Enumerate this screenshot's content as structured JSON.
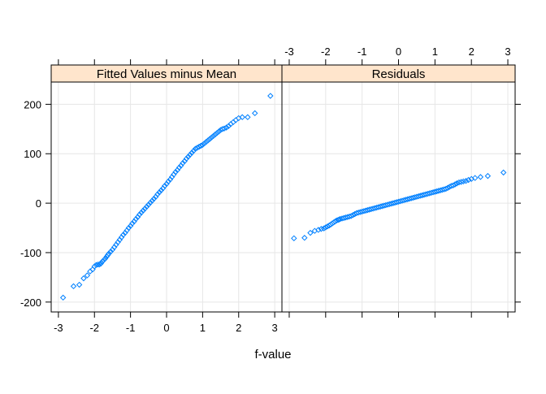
{
  "colors": {
    "point": "#0080ff",
    "strip_bg": "#ffe5cc",
    "grid": "#e6e6e6",
    "frame": "#000000"
  },
  "chart_data": {
    "type": "scatter",
    "plot_kind": "residual-fit spread plot (two-panel quantile plot)",
    "xlabel": "f-value",
    "ylabel": "",
    "xlim": [
      -3.2,
      3.2
    ],
    "ylim": [
      -220,
      245
    ],
    "x_ticks": [
      -3,
      -2,
      -1,
      0,
      1,
      2,
      3
    ],
    "y_ticks": [
      -200,
      -100,
      0,
      100,
      200
    ],
    "grid": true,
    "marker": "open diamond",
    "panels": [
      {
        "title": "Fitted Values minus Mean",
        "x_axis": "bottom",
        "series": [
          {
            "x": [
              -2.87,
              -2.58,
              -2.42,
              -2.3,
              -2.2,
              -2.12,
              -2.05,
              -2.0,
              -1.95,
              -1.9,
              -1.86,
              -1.82,
              -1.78,
              -1.74,
              -1.7,
              -1.66,
              -1.63,
              -1.6,
              -1.55,
              -1.5,
              -1.45,
              -1.4,
              -1.35,
              -1.3,
              -1.25,
              -1.2,
              -1.15,
              -1.1,
              -1.05,
              -1.0,
              -0.95,
              -0.9,
              -0.85,
              -0.8,
              -0.75,
              -0.7,
              -0.65,
              -0.6,
              -0.55,
              -0.5,
              -0.45,
              -0.4,
              -0.35,
              -0.3,
              -0.25,
              -0.2,
              -0.15,
              -0.1,
              -0.05,
              0.0,
              0.05,
              0.1,
              0.15,
              0.2,
              0.25,
              0.3,
              0.35,
              0.4,
              0.45,
              0.5,
              0.55,
              0.6,
              0.65,
              0.7,
              0.75,
              0.8,
              0.85,
              0.9,
              0.95,
              1.0,
              1.05,
              1.1,
              1.15,
              1.2,
              1.25,
              1.3,
              1.35,
              1.4,
              1.45,
              1.5,
              1.55,
              1.6,
              1.66,
              1.72,
              1.78,
              1.85,
              1.92,
              2.0,
              2.1,
              2.25,
              2.45,
              2.88
            ],
            "y": [
              -191,
              -168,
              -165,
              -152,
              -146,
              -138,
              -134,
              -128,
              -125,
              -124,
              -124,
              -122,
              -118,
              -115,
              -112,
              -108,
              -105,
              -102,
              -98,
              -94,
              -89,
              -84,
              -79,
              -74,
              -69,
              -64,
              -60,
              -55,
              -50,
              -46,
              -41,
              -37,
              -32,
              -28,
              -23,
              -19,
              -15,
              -11,
              -7,
              -3,
              1,
              5,
              9,
              13,
              18,
              22,
              26,
              30,
              35,
              39,
              44,
              48,
              53,
              58,
              63,
              67,
              72,
              76,
              81,
              85,
              90,
              94,
              98,
              102,
              106,
              110,
              112,
              114,
              116,
              118,
              121,
              124,
              127,
              130,
              133,
              136,
              139,
              142,
              145,
              148,
              150,
              151,
              153,
              156,
              160,
              164,
              168,
              172,
              174,
              174,
              182,
              217
            ]
          }
        ]
      },
      {
        "title": "Residuals",
        "x_axis": "top",
        "series": [
          {
            "x": [
              -2.87,
              -2.58,
              -2.42,
              -2.3,
              -2.2,
              -2.12,
              -2.05,
              -2.0,
              -1.95,
              -1.9,
              -1.86,
              -1.82,
              -1.78,
              -1.74,
              -1.7,
              -1.66,
              -1.63,
              -1.6,
              -1.55,
              -1.5,
              -1.45,
              -1.4,
              -1.35,
              -1.3,
              -1.25,
              -1.2,
              -1.15,
              -1.1,
              -1.05,
              -1.0,
              -0.95,
              -0.9,
              -0.85,
              -0.8,
              -0.75,
              -0.7,
              -0.65,
              -0.6,
              -0.55,
              -0.5,
              -0.45,
              -0.4,
              -0.35,
              -0.3,
              -0.25,
              -0.2,
              -0.15,
              -0.1,
              -0.05,
              0.0,
              0.05,
              0.1,
              0.15,
              0.2,
              0.25,
              0.3,
              0.35,
              0.4,
              0.45,
              0.5,
              0.55,
              0.6,
              0.65,
              0.7,
              0.75,
              0.8,
              0.85,
              0.9,
              0.95,
              1.0,
              1.05,
              1.1,
              1.15,
              1.2,
              1.25,
              1.3,
              1.35,
              1.4,
              1.45,
              1.5,
              1.55,
              1.6,
              1.66,
              1.72,
              1.78,
              1.85,
              1.92,
              2.0,
              2.1,
              2.25,
              2.45,
              2.88
            ],
            "y": [
              -71,
              -70,
              -60,
              -56,
              -54,
              -52,
              -51,
              -49,
              -47,
              -45,
              -43,
              -41,
              -39,
              -37,
              -35,
              -34,
              -33,
              -32,
              -31,
              -30,
              -29,
              -28,
              -27,
              -26,
              -24,
              -22,
              -20,
              -19,
              -18,
              -17,
              -16,
              -15,
              -14,
              -13,
              -12,
              -11,
              -10,
              -9,
              -8,
              -7,
              -6,
              -5,
              -4,
              -3,
              -2,
              -1,
              0,
              1,
              2,
              3,
              4,
              5,
              6,
              7,
              8,
              9,
              10,
              11,
              12,
              13,
              14,
              15,
              16,
              17,
              18,
              19,
              20,
              21,
              22,
              23,
              24,
              25,
              26,
              27,
              28,
              29,
              31,
              33,
              35,
              36,
              38,
              40,
              42,
              43,
              44,
              45,
              47,
              49,
              51,
              53,
              55,
              62
            ]
          }
        ]
      }
    ]
  }
}
